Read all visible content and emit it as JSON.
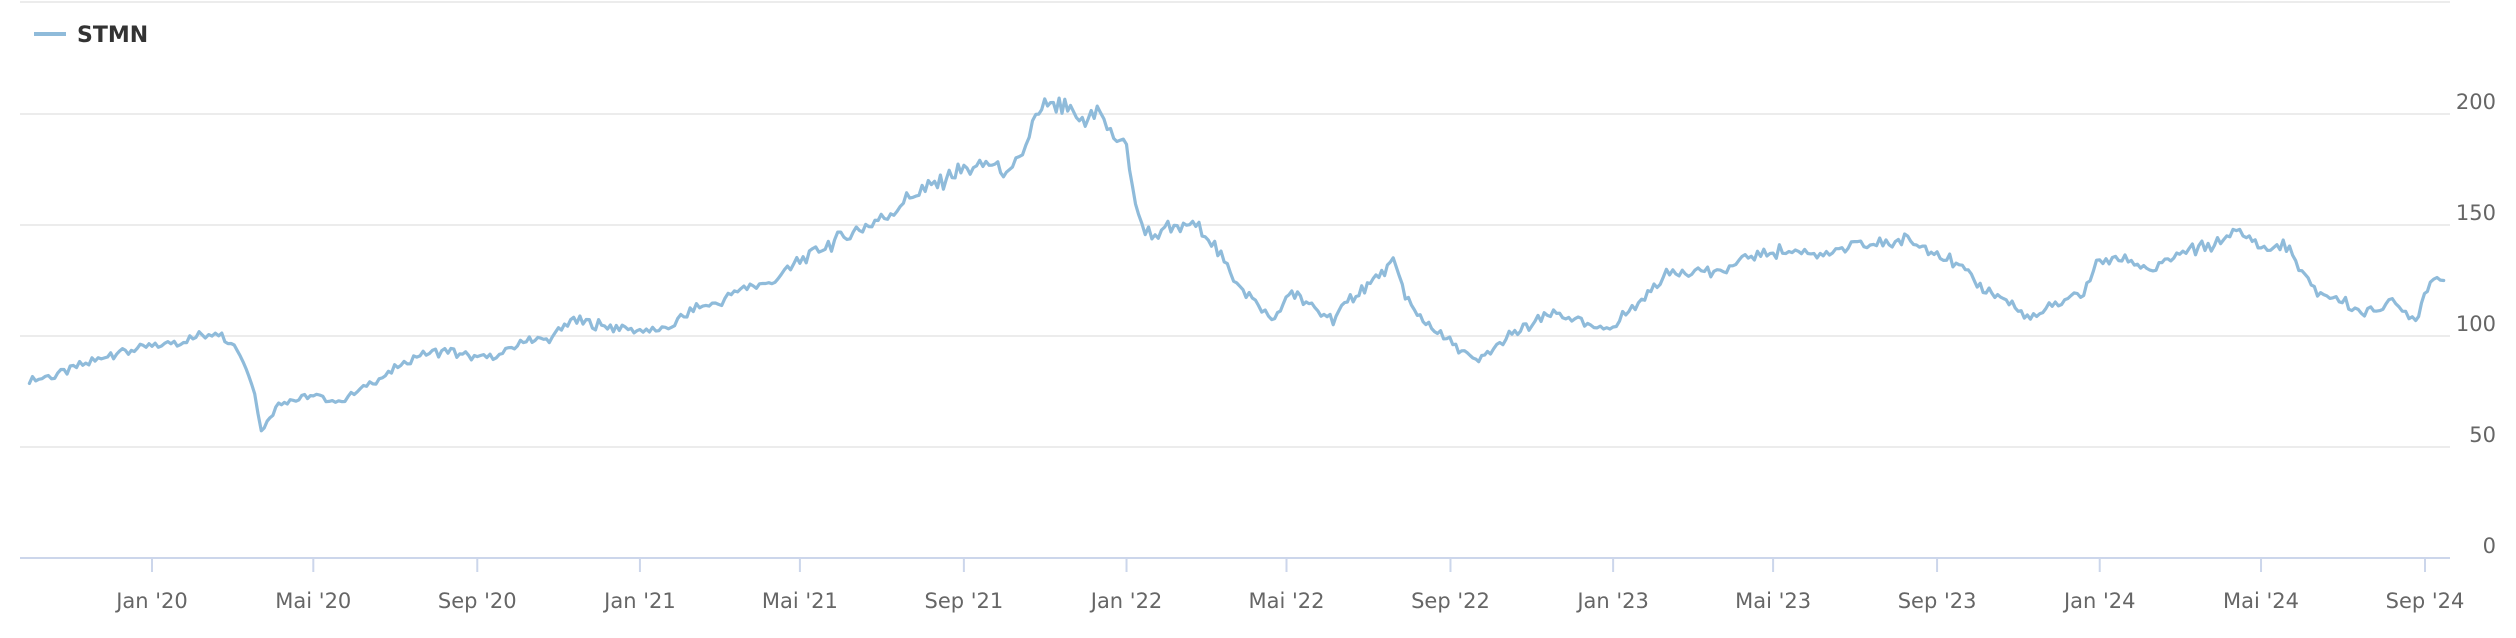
{
  "chart_data": {
    "type": "line",
    "legend": {
      "position": "top-left",
      "entries": [
        {
          "name": "STMN",
          "color": "#8fbbda"
        }
      ]
    },
    "x_ticks": [
      "Jan '20",
      "Mai '20",
      "Sep '20",
      "Jan '21",
      "Mai '21",
      "Sep '21",
      "Jan '22",
      "Mai '22",
      "Sep '22",
      "Jan '23",
      "Mai '23",
      "Sep '23",
      "Jan '24",
      "Mai '24",
      "Sep '24"
    ],
    "y_ticks": [
      "0",
      "50",
      "100",
      "150",
      "200"
    ],
    "ylim": [
      0,
      250
    ],
    "grid": true,
    "y_axis_side": "right",
    "series": [
      {
        "name": "STMN",
        "color": "#8fbbda",
        "x": [
          "2019-10-01",
          "2019-10-20",
          "2019-11-10",
          "2019-12-01",
          "2020-01-01",
          "2020-01-20",
          "2020-02-10",
          "2020-02-20",
          "2020-03-05",
          "2020-03-18",
          "2020-03-23",
          "2020-04-05",
          "2020-05-01",
          "2020-05-20",
          "2020-06-10",
          "2020-07-01",
          "2020-07-20",
          "2020-08-10",
          "2020-09-01",
          "2020-09-20",
          "2020-10-10",
          "2020-10-25",
          "2020-11-10",
          "2020-12-01",
          "2021-01-01",
          "2021-01-20",
          "2021-02-10",
          "2021-03-01",
          "2021-03-20",
          "2021-04-10",
          "2021-05-01",
          "2021-05-20",
          "2021-06-10",
          "2021-07-01",
          "2021-07-20",
          "2021-08-10",
          "2021-09-01",
          "2021-09-20",
          "2021-10-05",
          "2021-10-15",
          "2021-10-25",
          "2021-11-05",
          "2021-11-20",
          "2021-12-01",
          "2021-12-10",
          "2021-12-20",
          "2022-01-01",
          "2022-01-10",
          "2022-01-20",
          "2022-02-01",
          "2022-02-15",
          "2022-03-01",
          "2022-03-20",
          "2022-04-10",
          "2022-04-20",
          "2022-05-05",
          "2022-05-20",
          "2022-06-05",
          "2022-06-20",
          "2022-07-05",
          "2022-07-20",
          "2022-08-05",
          "2022-08-20",
          "2022-09-05",
          "2022-09-20",
          "2022-10-01",
          "2022-10-15",
          "2022-11-01",
          "2022-11-15",
          "2022-12-01",
          "2022-12-20",
          "2023-01-01",
          "2023-01-20",
          "2023-02-10",
          "2023-03-01",
          "2023-03-20",
          "2023-04-10",
          "2023-05-01",
          "2023-05-20",
          "2023-06-10",
          "2023-07-01",
          "2023-07-20",
          "2023-08-10",
          "2023-09-01",
          "2023-09-20",
          "2023-10-10",
          "2023-10-25",
          "2023-11-10",
          "2023-12-01",
          "2023-12-20",
          "2024-01-01",
          "2024-01-20",
          "2024-02-10",
          "2024-03-01",
          "2024-03-20",
          "2024-04-10",
          "2024-04-20",
          "2024-05-01",
          "2024-05-20",
          "2024-06-10",
          "2024-07-01",
          "2024-07-20",
          "2024-08-05",
          "2024-08-15",
          "2024-08-25",
          "2024-09-05",
          "2024-09-15"
        ],
        "values": [
          80,
          82,
          87,
          92,
          95,
          97,
          101,
          102,
          95,
          75,
          57,
          70,
          73,
          70,
          78,
          85,
          92,
          93,
          90,
          92,
          99,
          98,
          107,
          105,
          102,
          103,
          112,
          115,
          122,
          124,
          134,
          140,
          147,
          152,
          162,
          168,
          175,
          178,
          172,
          182,
          199,
          205,
          200,
          195,
          204,
          190,
          185,
          152,
          145,
          148,
          150,
          148,
          128,
          113,
          107,
          120,
          113,
          107,
          118,
          125,
          132,
          110,
          103,
          95,
          88,
          93,
          100,
          105,
          110,
          108,
          103,
          105,
          115,
          128,
          130,
          128,
          135,
          138,
          138,
          137,
          140,
          142,
          143,
          138,
          130,
          120,
          115,
          107,
          115,
          120,
          134,
          135,
          130,
          137,
          140,
          147,
          145,
          140,
          140,
          120,
          116,
          110,
          115,
          112,
          108,
          125,
          125
        ]
      }
    ]
  }
}
